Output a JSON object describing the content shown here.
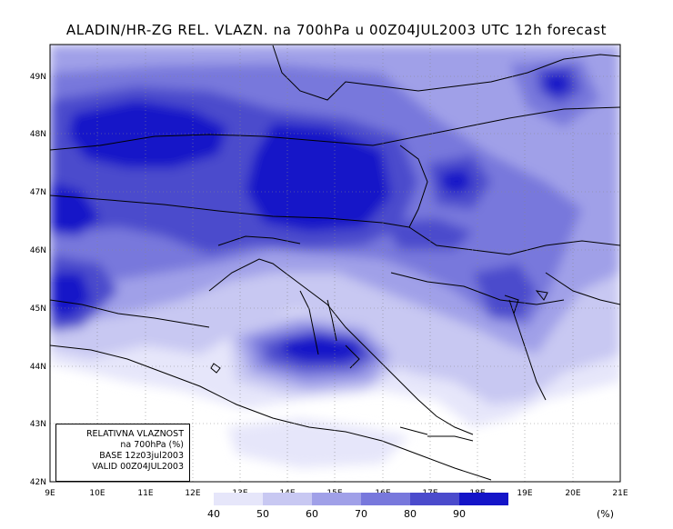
{
  "title": "ALADIN/HR-ZG REL. VLAZN. na 700hPa u 00Z04JUL2003 UTC 12h forecast",
  "map": {
    "lon_ticks": [
      "9E",
      "10E",
      "11E",
      "12E",
      "13E",
      "14E",
      "15E",
      "16E",
      "17E",
      "18E",
      "19E",
      "20E",
      "21E"
    ],
    "lat_ticks": [
      "49N",
      "48N",
      "47N",
      "46N",
      "45N",
      "44N",
      "43N",
      "42N"
    ],
    "lon_range": [
      9,
      21
    ],
    "lat_range": [
      42,
      49.5
    ],
    "grid": "dotted"
  },
  "info_box": {
    "line1": "RELATIVNA VLAZNOST",
    "line2": "na 700hPa (%)",
    "line3": "BASE 12z03jul2003",
    "line4": "VALID 00Z04JUL2003"
  },
  "colorbar": {
    "labels": [
      "40",
      "50",
      "60",
      "70",
      "80",
      "90"
    ],
    "unit": "(%)",
    "colors": [
      "#e6e6fa",
      "#c8c8f2",
      "#a0a0e8",
      "#7878dc",
      "#4b4bcc",
      "#1414c8"
    ]
  }
}
